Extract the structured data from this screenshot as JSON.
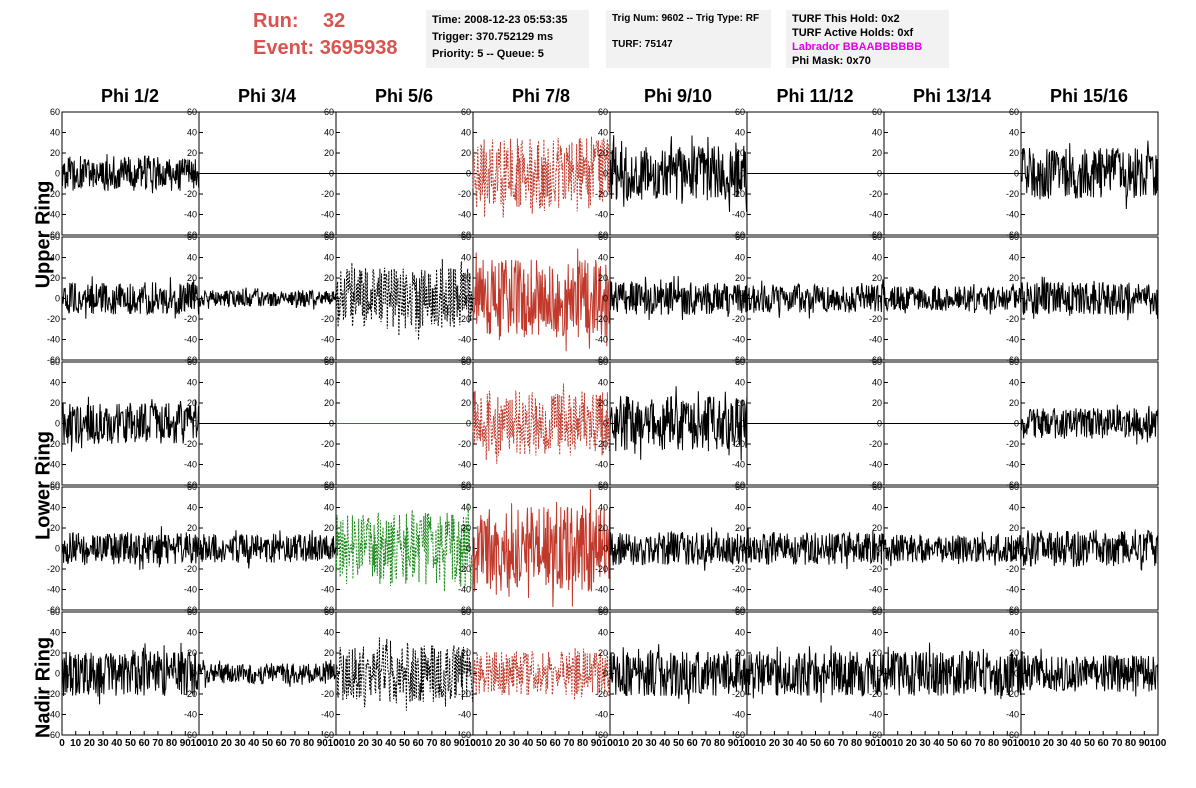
{
  "header": {
    "run_label": "Run:",
    "run_value": "32",
    "event_label": "Event:",
    "event_value": "3695938",
    "time_line": "Time: 2008-12-23 05:53:35",
    "trigger_line": "Trigger: 370.752129 ms",
    "priority_line": "Priority: 5 -- Queue: 5",
    "trig_num_line": "Trig Num: 9602 -- Trig Type: RF",
    "turf_line": "TURF: 75147",
    "turf_hold_line": "TURF This Hold: 0x2",
    "turf_active_line": "TURF Active Holds: 0xf",
    "labrador_line": "Labrador BBAABBBBBB",
    "phi_mask_line": "Phi Mask: 0x70"
  },
  "chart_data": {
    "type": "line",
    "columns": [
      "Phi 1/2",
      "Phi 3/4",
      "Phi 5/6",
      "Phi 7/8",
      "Phi 9/10",
      "Phi 11/12",
      "Phi 13/14",
      "Phi 15/16"
    ],
    "row_groups": [
      "Upper Ring",
      "Lower Ring",
      "Nadir Ring"
    ],
    "ylim": [
      -60,
      60
    ],
    "yticks": [
      "60",
      "40",
      "20",
      "0",
      "-20",
      "-40",
      "-60"
    ],
    "xlim": [
      0,
      100
    ],
    "xticks": [
      "0",
      "10",
      "20",
      "30",
      "40",
      "50",
      "60",
      "70",
      "80",
      "90",
      "100"
    ],
    "colors": {
      "normal": "#000000",
      "red": "#c0392b",
      "green": "#1a8a1a"
    },
    "panels": [
      [
        {
          "style": "solid",
          "color": "black",
          "amp": 17
        },
        {
          "style": "flat",
          "color": "black",
          "amp": 0
        },
        {
          "style": "flat",
          "color": "black",
          "amp": 0
        },
        {
          "style": "dash",
          "color": "red",
          "amp": 35
        },
        {
          "style": "solid",
          "color": "black",
          "amp": 27
        },
        {
          "style": "flat",
          "color": "black",
          "amp": 0
        },
        {
          "style": "flat",
          "color": "black",
          "amp": 0
        },
        {
          "style": "solid",
          "color": "black",
          "amp": 25
        }
      ],
      [
        {
          "style": "solid",
          "color": "black",
          "amp": 16
        },
        {
          "style": "solid",
          "color": "black",
          "amp": 8
        },
        {
          "style": "dash",
          "color": "black",
          "amp": 30
        },
        {
          "style": "solid",
          "color": "red",
          "amp": 38
        },
        {
          "style": "solid",
          "color": "black",
          "amp": 16
        },
        {
          "style": "solid",
          "color": "black",
          "amp": 14
        },
        {
          "style": "solid",
          "color": "black",
          "amp": 12
        },
        {
          "style": "solid",
          "color": "black",
          "amp": 16
        }
      ],
      [
        {
          "style": "solid",
          "color": "black",
          "amp": 20
        },
        {
          "style": "flat",
          "color": "black",
          "amp": 0
        },
        {
          "style": "flat",
          "color": "green",
          "amp": 0
        },
        {
          "style": "dash",
          "color": "red",
          "amp": 32
        },
        {
          "style": "solid",
          "color": "black",
          "amp": 27
        },
        {
          "style": "flat",
          "color": "black",
          "amp": 0
        },
        {
          "style": "flat",
          "color": "black",
          "amp": 0
        },
        {
          "style": "solid",
          "color": "black",
          "amp": 15
        }
      ],
      [
        {
          "style": "solid",
          "color": "black",
          "amp": 16
        },
        {
          "style": "solid",
          "color": "black",
          "amp": 14
        },
        {
          "style": "dash",
          "color": "green",
          "amp": 35
        },
        {
          "style": "solid",
          "color": "red",
          "amp": 42
        },
        {
          "style": "solid",
          "color": "black",
          "amp": 16
        },
        {
          "style": "solid",
          "color": "black",
          "amp": 16
        },
        {
          "style": "solid",
          "color": "black",
          "amp": 14
        },
        {
          "style": "solid",
          "color": "black",
          "amp": 18
        }
      ],
      [
        {
          "style": "solid",
          "color": "black",
          "amp": 22
        },
        {
          "style": "solid",
          "color": "black",
          "amp": 10
        },
        {
          "style": "dash",
          "color": "black",
          "amp": 28
        },
        {
          "style": "dash",
          "color": "red",
          "amp": 22
        },
        {
          "style": "solid",
          "color": "black",
          "amp": 22
        },
        {
          "style": "solid",
          "color": "black",
          "amp": 22
        },
        {
          "style": "solid",
          "color": "black",
          "amp": 22
        },
        {
          "style": "solid",
          "color": "black",
          "amp": 18
        }
      ]
    ]
  }
}
